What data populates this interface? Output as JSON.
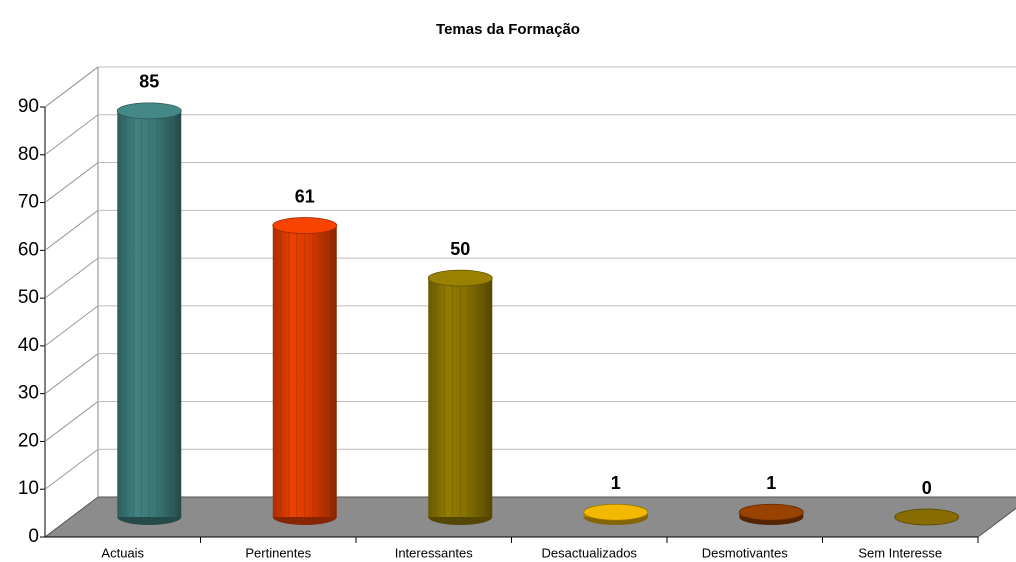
{
  "chart_data": {
    "type": "bar",
    "title": "Temas da Formação",
    "categories": [
      "Actuais",
      "Pertinentes",
      "Interessantes",
      "Desactualizados",
      "Desmotivantes",
      "Sem Interesse"
    ],
    "values": [
      85,
      61,
      50,
      1,
      1,
      0
    ],
    "colors": [
      "#3f7c7c",
      "#e23d00",
      "#8c7600",
      "#dca800",
      "#8c3c00",
      "#7c6200"
    ],
    "ylim": [
      0,
      90
    ],
    "yticks": [
      0,
      10,
      20,
      30,
      40,
      50,
      60,
      70,
      80,
      90
    ],
    "grid": true
  }
}
